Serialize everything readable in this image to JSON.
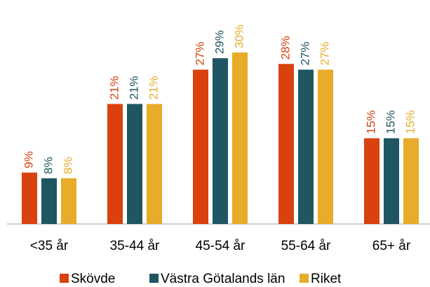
{
  "chart_data": {
    "type": "bar",
    "categories": [
      "<35 år",
      "35-44 år",
      "45-54 år",
      "55-64 år",
      "65+ år"
    ],
    "series": [
      {
        "name": "Skövde",
        "color": "#d9410f",
        "values": [
          9,
          21,
          27,
          28,
          15
        ],
        "value_labels": [
          "9%",
          "21%",
          "27%",
          "28%",
          "15%"
        ]
      },
      {
        "name": "Västra Götalands län",
        "color": "#1f5661",
        "values": [
          8,
          21,
          29,
          27,
          15
        ],
        "value_labels": [
          "8%",
          "21%",
          "29%",
          "27%",
          "15%"
        ]
      },
      {
        "name": "Riket",
        "color": "#e8ab2a",
        "values": [
          8,
          21,
          30,
          27,
          15
        ],
        "value_labels": [
          "8%",
          "21%",
          "30%",
          "27%",
          "15%"
        ]
      }
    ]
  }
}
